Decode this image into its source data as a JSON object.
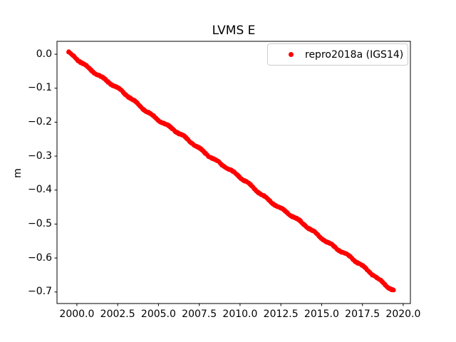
{
  "figure": {
    "background_color": "#ffffff",
    "frame_color": "#000000",
    "text_color": "#000000",
    "legend_border_color": "#cccccc"
  },
  "chart_data": {
    "type": "scatter",
    "title": "LVMS E",
    "xlabel": "",
    "ylabel": "m",
    "grid": false,
    "xlim": [
      1998.78,
      2020.44
    ],
    "ylim": [
      -0.734,
      0.038
    ],
    "x_ticks": {
      "values": [
        2000.0,
        2002.5,
        2005.0,
        2007.5,
        2010.0,
        2012.5,
        2015.0,
        2017.5,
        2020.0
      ],
      "labels": [
        "2000.0",
        "2002.5",
        "2005.0",
        "2007.5",
        "2010.0",
        "2012.5",
        "2015.0",
        "2017.5",
        "2020.0"
      ]
    },
    "y_ticks": {
      "values": [
        0.0,
        -0.1,
        -0.2,
        -0.3,
        -0.4,
        -0.5,
        -0.6,
        -0.7
      ],
      "labels": [
        "0.0",
        "−0.1",
        "−0.2",
        "−0.3",
        "−0.4",
        "−0.5",
        "−0.6",
        "−0.7"
      ]
    },
    "legend": {
      "position": "upper right",
      "entries": [
        {
          "label": "repro2018a (IGS14)",
          "marker": "dot",
          "color": "#ff0000"
        }
      ]
    },
    "series": [
      {
        "name": "repro2018a (IGS14)",
        "color": "#ff0000",
        "marker": "dot",
        "marker_size_px": 6,
        "x_start": 1999.48,
        "x_end": 2019.42,
        "y_start": 0.003,
        "y_end": -0.694,
        "slope_m_per_year": -0.035,
        "sample_step_years": 0.02,
        "annual_signal_amplitude_m": 0.0022,
        "noise_amplitude_m": 0.0018,
        "anchor_points": [
          [
            1999.48,
            0.003
          ],
          [
            2000.0,
            -0.015
          ],
          [
            2002.0,
            -0.085
          ],
          [
            2004.0,
            -0.155
          ],
          [
            2006.0,
            -0.225
          ],
          [
            2008.0,
            -0.295
          ],
          [
            2010.0,
            -0.365
          ],
          [
            2012.0,
            -0.435
          ],
          [
            2014.0,
            -0.505
          ],
          [
            2016.0,
            -0.575
          ],
          [
            2018.0,
            -0.645
          ],
          [
            2019.42,
            -0.694
          ]
        ]
      }
    ]
  }
}
